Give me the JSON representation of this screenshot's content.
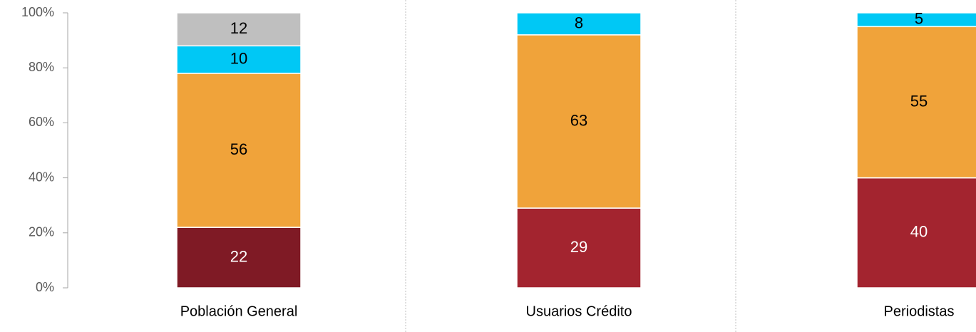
{
  "chart_data": {
    "type": "stacked_bar",
    "categories": [
      "Población General",
      "Usuarios Crédito",
      "Periodistas"
    ],
    "series": [
      {
        "colors": [
          "#7f1a25",
          "#a3242f",
          "#a3242f"
        ],
        "label_color": "#ffffff",
        "values": [
          22,
          29,
          40
        ]
      },
      {
        "color": "#f0a33a",
        "label_color": "#000000",
        "values": [
          56,
          63,
          55
        ]
      },
      {
        "color": "#00c8f5",
        "label_color": "#000000",
        "values": [
          10,
          8,
          5
        ]
      },
      {
        "color": "#bfbfbf",
        "label_color": "#000000",
        "values": [
          12,
          null,
          null
        ]
      }
    ],
    "ylim": [
      0,
      100
    ],
    "yticks": [
      {
        "value": 0,
        "label": "0%"
      },
      {
        "value": 20,
        "label": "20%"
      },
      {
        "value": 40,
        "label": "40%"
      },
      {
        "value": 60,
        "label": "60%"
      },
      {
        "value": 80,
        "label": "80%"
      },
      {
        "value": 100,
        "label": "100%"
      }
    ]
  }
}
